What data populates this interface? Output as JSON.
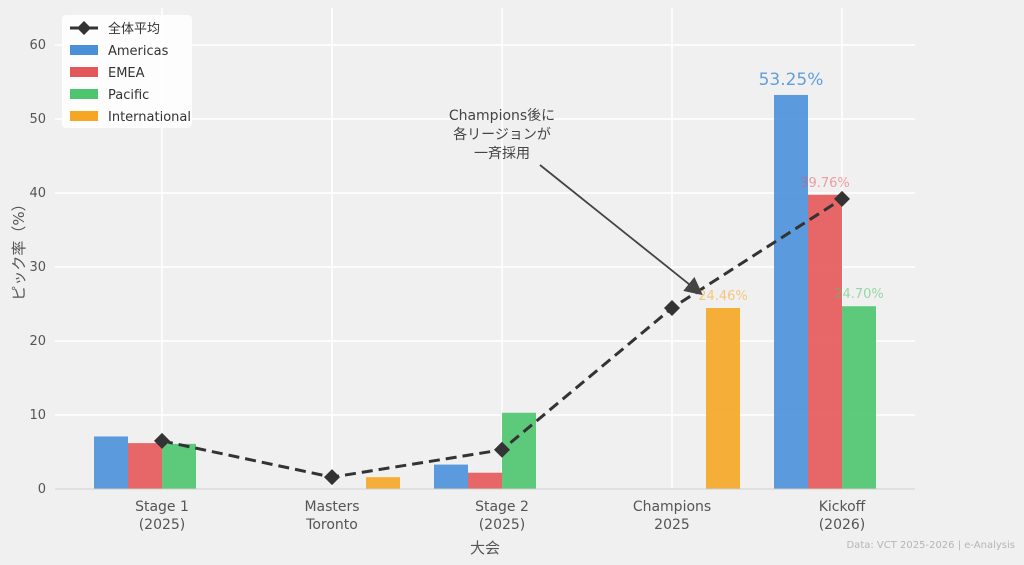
{
  "chart_data": {
    "type": "bar",
    "categories": [
      "Stage 1\n(2025)",
      "Masters\nToronto",
      "Stage 2\n(2025)",
      "Champions\n2025",
      "Kickoff\n(2026)"
    ],
    "series": [
      {
        "name": "Americas",
        "values": [
          7.1,
          0,
          3.3,
          0,
          53.25
        ],
        "color": "#4a90d9"
      },
      {
        "name": "EMEA",
        "values": [
          6.2,
          0,
          2.2,
          0,
          39.76
        ],
        "color": "#e5585a"
      },
      {
        "name": "Pacific",
        "values": [
          6.1,
          0,
          10.3,
          0,
          24.7
        ],
        "color": "#4dc46e"
      },
      {
        "name": "International",
        "values": [
          0,
          1.6,
          0,
          24.46,
          0
        ],
        "color": "#f5a623"
      }
    ],
    "average_line": {
      "name": "全体平均",
      "values": [
        6.5,
        1.6,
        5.3,
        24.46,
        39.2
      ],
      "color": "#333333"
    },
    "data_labels": [
      {
        "text": "53.25%",
        "series": "Americas",
        "category_index": 4
      },
      {
        "text": "39.76%",
        "series": "EMEA",
        "category_index": 4
      },
      {
        "text": "24.70%",
        "series": "Pacific",
        "category_index": 4
      },
      {
        "text": "24.46%",
        "series": "International",
        "category_index": 3
      }
    ],
    "xlabel": "大会",
    "ylabel": "ピック率（%）",
    "ylim": [
      0,
      65
    ],
    "yticks": [
      0,
      10,
      20,
      30,
      40,
      50,
      60
    ],
    "grid": true,
    "legend_position": "top-left",
    "annotation": {
      "text": [
        "Champions後に",
        "各リージョンが",
        "一斉採用"
      ],
      "target_category_index": 3,
      "target_value": 26.5
    },
    "credit": "Data: VCT 2025-2026 | e-Analysis"
  }
}
